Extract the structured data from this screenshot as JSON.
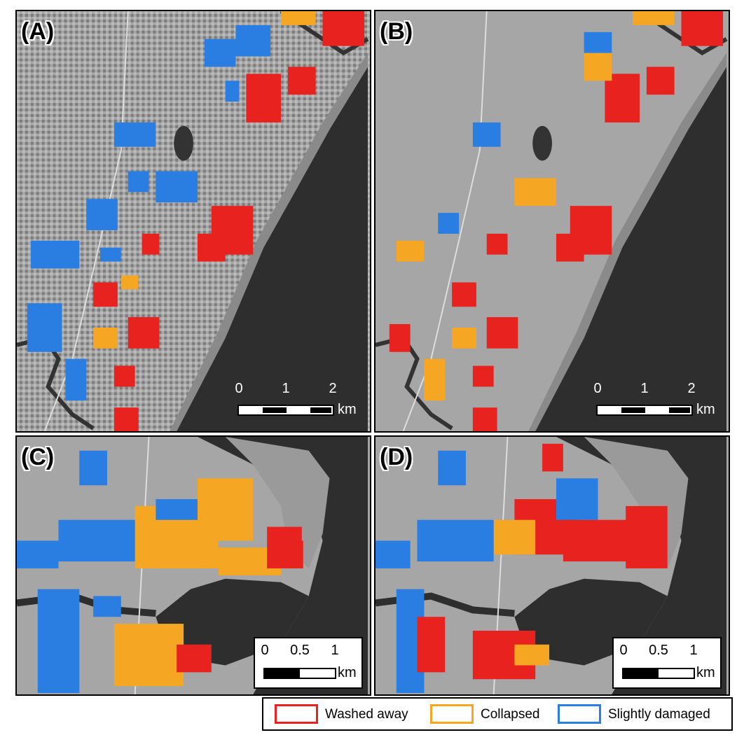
{
  "panels": [
    {
      "label": "(A)",
      "scale": {
        "ticks": [
          "0",
          "1",
          "2"
        ],
        "unit": "km"
      }
    },
    {
      "label": "(B)",
      "scale": {
        "ticks": [
          "0",
          "1",
          "2"
        ],
        "unit": "km"
      }
    },
    {
      "label": "(C)",
      "scale": {
        "ticks": [
          "0",
          "0.5",
          "1"
        ],
        "unit": "km"
      }
    },
    {
      "label": "(D)",
      "scale": {
        "ticks": [
          "0",
          "0.5",
          "1"
        ],
        "unit": "km"
      }
    }
  ],
  "legend": {
    "items": [
      {
        "label": "Washed away",
        "color": "#e8221e"
      },
      {
        "label": "Collapsed",
        "color": "#f5a623"
      },
      {
        "label": "Slightly damaged",
        "color": "#2a7de1"
      }
    ]
  },
  "colors": {
    "land": "#a8a8a8",
    "water": "#2b2b2b",
    "washed": "#e8221e",
    "collapsed": "#f5a623",
    "slight": "#2a7de1"
  }
}
